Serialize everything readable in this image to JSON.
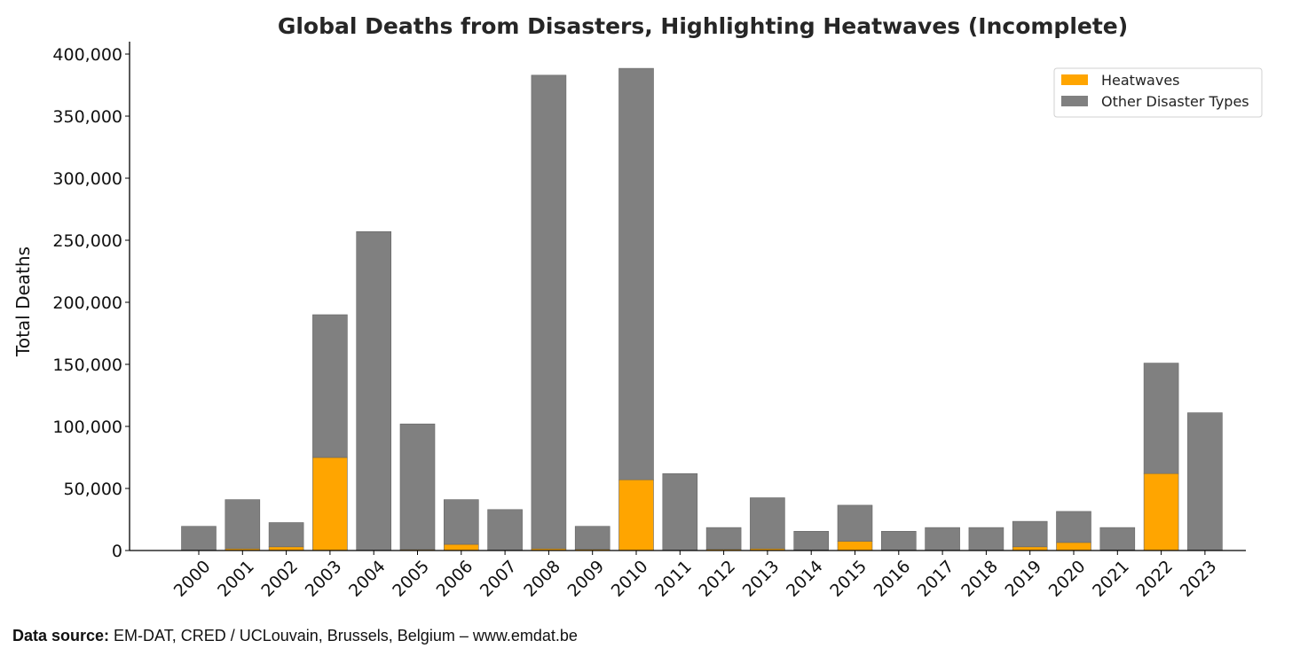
{
  "chart_data": {
    "type": "bar",
    "stacked": true,
    "title": "Global Deaths from Disasters, Highlighting Heatwaves (Incomplete)",
    "xlabel": "",
    "ylabel": "Total Deaths",
    "ylim": [
      0,
      410000
    ],
    "yticks": [
      0,
      50000,
      100000,
      150000,
      200000,
      250000,
      300000,
      350000,
      400000
    ],
    "ytick_labels": [
      "0",
      "50,000",
      "100,000",
      "150,000",
      "200,000",
      "250,000",
      "300,000",
      "350,000",
      "400,000"
    ],
    "categories": [
      "2000",
      "2001",
      "2002",
      "2003",
      "2004",
      "2005",
      "2006",
      "2007",
      "2008",
      "2009",
      "2010",
      "2011",
      "2012",
      "2013",
      "2014",
      "2015",
      "2016",
      "2017",
      "2018",
      "2019",
      "2020",
      "2021",
      "2022",
      "2023"
    ],
    "series": [
      {
        "name": "Heatwaves",
        "color": "#ffa500",
        "values": [
          200,
          1500,
          3000,
          75000,
          200,
          800,
          5000,
          300,
          1500,
          1000,
          57000,
          200,
          1000,
          1500,
          500,
          7500,
          300,
          200,
          200,
          3000,
          6500,
          500,
          62000,
          300
        ]
      },
      {
        "name": "Other Disaster Types",
        "color": "#808080",
        "values": [
          19300,
          39500,
          19500,
          115000,
          256800,
          101200,
          36000,
          32700,
          381500,
          18500,
          331500,
          61800,
          17500,
          41000,
          15000,
          29000,
          15200,
          18300,
          18300,
          20500,
          25000,
          18000,
          89000,
          110700
        ]
      }
    ],
    "legend_position": "top-right",
    "grid": false
  },
  "footer": {
    "source_label": "Data source:",
    "source_text": " EM-DAT, CRED / UCLouvain, Brussels, Belgium – www.emdat.be"
  }
}
